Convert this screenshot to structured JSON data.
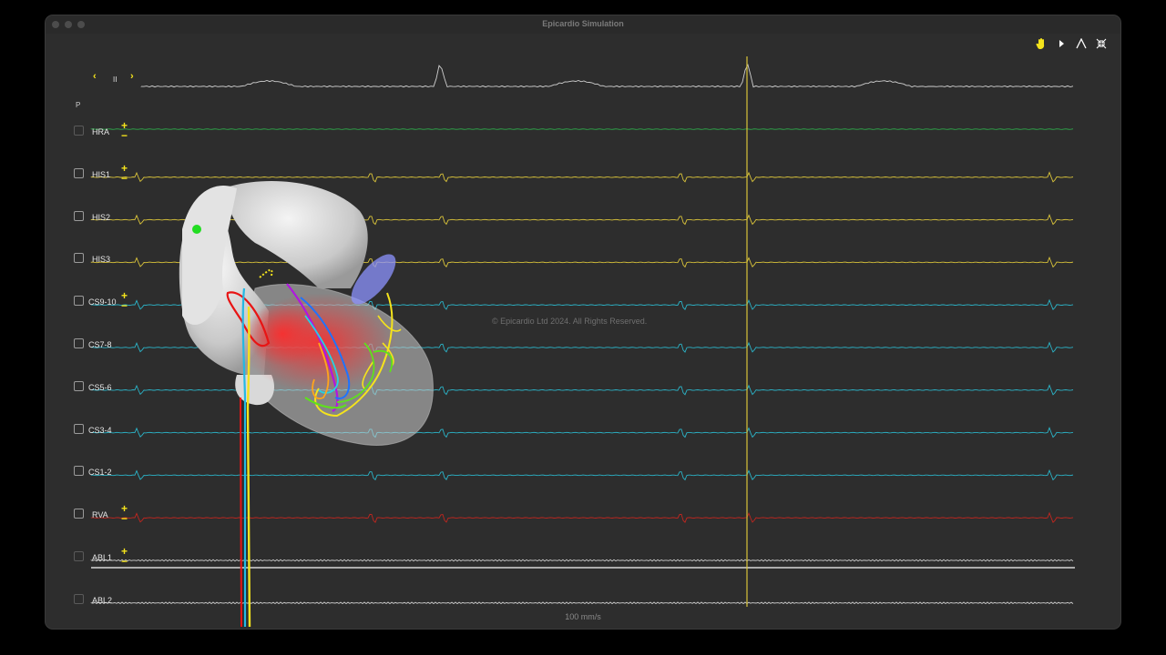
{
  "window": {
    "title": "Epicardio Simulation"
  },
  "toolbar": {
    "icons": [
      "hand-icon",
      "play-icon",
      "caliper-icon",
      "collapse-icon"
    ]
  },
  "ecg": {
    "lead_name": "II",
    "prev_icon": "‹",
    "next_icon": "›"
  },
  "p_label": "P",
  "channels": [
    {
      "label": "HRA",
      "color": "#2ea84a"
    },
    {
      "label": "HIS1",
      "color": "#d9c33a"
    },
    {
      "label": "HIS2",
      "color": "#d9c33a"
    },
    {
      "label": "HIS3",
      "color": "#d9c33a"
    },
    {
      "label": "CS9-10",
      "color": "#2bb3c7"
    },
    {
      "label": "CS7-8",
      "color": "#2bb3c7"
    },
    {
      "label": "CS5-6",
      "color": "#2bb3c7"
    },
    {
      "label": "CS3-4",
      "color": "#2bb3c7"
    },
    {
      "label": "CS1-2",
      "color": "#2bb3c7"
    },
    {
      "label": "RVA",
      "color": "#c0261f"
    },
    {
      "label": "ABL1",
      "color": "#cfcfcf"
    },
    {
      "label": "ABL2",
      "color": "#cfcfcf"
    }
  ],
  "plus_minus": {
    "plus": "+",
    "minus": "−"
  },
  "watermark": "© Epicardio Ltd 2024. All Rights Reserved.",
  "speed": "100 mm/s",
  "colors": {
    "accent": "#f4e31c",
    "background": "#2d2d2d"
  }
}
